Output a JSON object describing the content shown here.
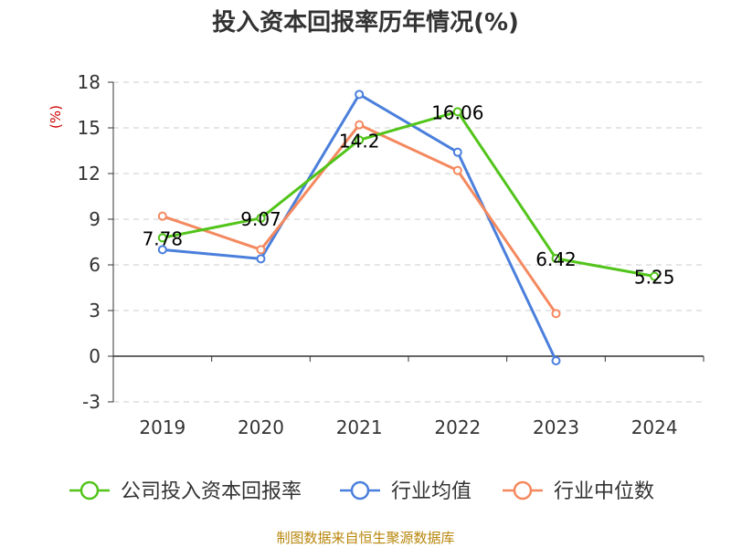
{
  "title": "投入资本回报率历年情况(%)",
  "source": "制图数据来自恒生聚源数据库",
  "colors": {
    "title": "#333333",
    "axis": "#333333",
    "grid": "#cccccc",
    "ylabel": "#cc0000",
    "source": "#b8860b",
    "label": "#000000"
  },
  "chart_data": {
    "type": "line",
    "categories": [
      "2019",
      "2020",
      "2021",
      "2022",
      "2023",
      "2024"
    ],
    "ylabel": "(%)",
    "ylim": [
      -3,
      18
    ],
    "yticks": [
      "18",
      "15",
      "12",
      "9",
      "6",
      "3",
      "0",
      "-3"
    ],
    "grid": true,
    "legend_position": "bottom",
    "series": [
      {
        "name": "公司投入资本回报率",
        "color": "#52c41a",
        "values": [
          7.78,
          9.07,
          14.2,
          16.06,
          6.42,
          5.25
        ],
        "labels": [
          "7.78",
          "9.07",
          "14.2",
          "16.06",
          "6.42",
          "5.25"
        ],
        "show_labels": true
      },
      {
        "name": "行业均值",
        "color": "#4a7fdc",
        "values": [
          7.0,
          6.4,
          17.2,
          13.4,
          -0.3,
          null
        ],
        "show_labels": false
      },
      {
        "name": "行业中位数",
        "color": "#f4895f",
        "values": [
          9.2,
          7.0,
          15.2,
          12.2,
          2.8,
          null
        ],
        "show_labels": false
      }
    ]
  }
}
